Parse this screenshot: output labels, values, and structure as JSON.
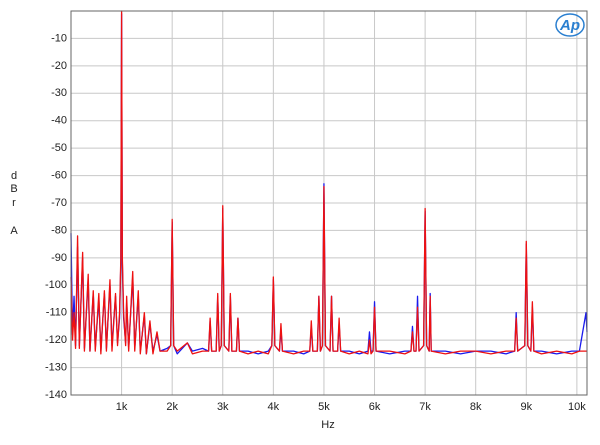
{
  "chart_data": {
    "type": "line",
    "logo": "Ap",
    "xlabel": "Hz",
    "ylabel": [
      "d",
      "B",
      "r",
      "A"
    ],
    "xlim": [
      0,
      10200
    ],
    "ylim": [
      -140,
      0
    ],
    "xticks": [
      {
        "value": 1000,
        "label": "1k"
      },
      {
        "value": 2000,
        "label": "2k"
      },
      {
        "value": 3000,
        "label": "3k"
      },
      {
        "value": 4000,
        "label": "4k"
      },
      {
        "value": 5000,
        "label": "5k"
      },
      {
        "value": 6000,
        "label": "6k"
      },
      {
        "value": 7000,
        "label": "7k"
      },
      {
        "value": 8000,
        "label": "8k"
      },
      {
        "value": 9000,
        "label": "9k"
      },
      {
        "value": 10000,
        "label": "10k"
      }
    ],
    "yticks": [
      -140,
      -130,
      -120,
      -110,
      -100,
      -90,
      -80,
      -70,
      -60,
      -50,
      -40,
      -30,
      -20,
      -10
    ],
    "grid": true,
    "x": [
      0,
      30,
      60,
      90,
      130,
      165,
      230,
      265,
      340,
      375,
      440,
      480,
      550,
      590,
      660,
      700,
      770,
      810,
      880,
      920,
      960,
      985,
      1000,
      1015,
      1040,
      1080,
      1100,
      1140,
      1220,
      1260,
      1330,
      1370,
      1450,
      1490,
      1560,
      1620,
      1700,
      1760,
      1900,
      1970,
      2000,
      2030,
      2100,
      2300,
      2400,
      2600,
      2720,
      2750,
      2780,
      2870,
      2900,
      2930,
      2970,
      3000,
      3030,
      3120,
      3150,
      3180,
      3270,
      3300,
      3330,
      3500,
      3700,
      3900,
      3970,
      4000,
      4030,
      4120,
      4150,
      4180,
      4400,
      4600,
      4720,
      4750,
      4780,
      4870,
      4900,
      4930,
      4970,
      5000,
      5030,
      5120,
      5150,
      5180,
      5270,
      5300,
      5330,
      5500,
      5700,
      5870,
      5900,
      5930,
      5970,
      6000,
      6030,
      6300,
      6600,
      6720,
      6750,
      6780,
      6820,
      6850,
      6880,
      6970,
      7000,
      7030,
      7080,
      7100,
      7120,
      7400,
      7700,
      8000,
      8300,
      8600,
      8770,
      8800,
      8830,
      8970,
      9000,
      9030,
      9090,
      9120,
      9150,
      9300,
      9600,
      9900,
      10050,
      10180,
      10200
    ],
    "series": [
      {
        "color": "#1a1aee",
        "values": [
          -81,
          -118,
          -104,
          -122,
          -86,
          -122,
          -90,
          -123,
          -98,
          -124,
          -103,
          -123,
          -105,
          -124,
          -103,
          -123,
          -100,
          -122,
          -104,
          -121,
          -112,
          -92,
          -1,
          -92,
          -112,
          -121,
          -106,
          -123,
          -97,
          -123,
          -104,
          -124,
          -111,
          -125,
          -114,
          -124,
          -118,
          -124,
          -123,
          -122,
          -77,
          -122,
          -125,
          -121,
          -124,
          -123,
          -124,
          -113,
          -124,
          -124,
          -104,
          -124,
          -122,
          -72,
          -122,
          -124,
          -104,
          -124,
          -124,
          -112,
          -124,
          -124,
          -125,
          -124,
          -122,
          -98,
          -122,
          -124,
          -116,
          -124,
          -124,
          -125,
          -124,
          -115,
          -124,
          -124,
          -104,
          -124,
          -122,
          -63,
          -122,
          -124,
          -104,
          -124,
          -124,
          -114,
          -124,
          -124,
          -125,
          -124,
          -117,
          -124,
          -124,
          -106,
          -124,
          -125,
          -124,
          -124,
          -115,
          -124,
          -124,
          -104,
          -124,
          -122,
          -73,
          -122,
          -124,
          -103,
          -124,
          -124,
          -125,
          -124,
          -124,
          -125,
          -124,
          -110,
          -124,
          -122,
          -85,
          -122,
          -124,
          -108,
          -124,
          -124,
          -125,
          -124,
          -124,
          -110,
          -117
        ]
      },
      {
        "color": "#ee1111",
        "values": [
          -97,
          -120,
          -110,
          -123,
          -82,
          -123,
          -88,
          -124,
          -96,
          -124,
          -102,
          -124,
          -103,
          -125,
          -102,
          -124,
          -98,
          -124,
          -103,
          -122,
          -110,
          -90,
          0,
          -90,
          -110,
          -122,
          -104,
          -124,
          -95,
          -124,
          -102,
          -125,
          -110,
          -125,
          -113,
          -125,
          -117,
          -124,
          -124,
          -122,
          -76,
          -122,
          -124,
          -121,
          -125,
          -124,
          -124,
          -112,
          -124,
          -124,
          -103,
          -124,
          -122,
          -71,
          -122,
          -124,
          -103,
          -124,
          -124,
          -112,
          -124,
          -125,
          -124,
          -125,
          -122,
          -97,
          -122,
          -124,
          -114,
          -124,
          -125,
          -124,
          -124,
          -113,
          -124,
          -124,
          -104,
          -124,
          -122,
          -64,
          -122,
          -124,
          -104,
          -124,
          -124,
          -112,
          -124,
          -125,
          -124,
          -125,
          -120,
          -125,
          -124,
          -108,
          -124,
          -124,
          -125,
          -124,
          -117,
          -124,
          -124,
          -108,
          -124,
          -122,
          -72,
          -122,
          -124,
          -104,
          -124,
          -125,
          -124,
          -124,
          -125,
          -124,
          -124,
          -112,
          -124,
          -122,
          -84,
          -122,
          -124,
          -106,
          -124,
          -125,
          -124,
          -125,
          -124,
          -124,
          -124
        ]
      }
    ]
  }
}
